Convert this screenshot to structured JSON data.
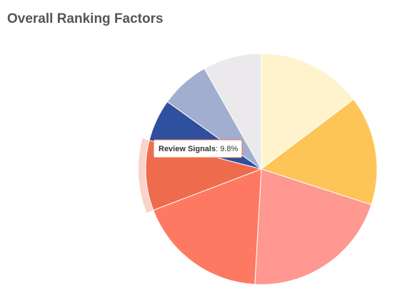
{
  "chart_data": {
    "type": "pie",
    "title": "Overall Ranking Factors",
    "categories": [
      null,
      null,
      null,
      null,
      "Review Signals",
      null,
      null,
      null
    ],
    "values": [
      14.7,
      15.3,
      20.9,
      18.3,
      9.8,
      5.9,
      6.9,
      8.2
    ],
    "value_labels": [
      null,
      null,
      null,
      null,
      ": 9.8%",
      null,
      null,
      null
    ],
    "colors": [
      "#fef3cd",
      "#fdc457",
      "#fe9890",
      "#fe7961",
      "#ee6c4d",
      "#2f4f9f",
      "#a1aed0",
      "#ebe9ec"
    ],
    "highlighted": 4
  }
}
